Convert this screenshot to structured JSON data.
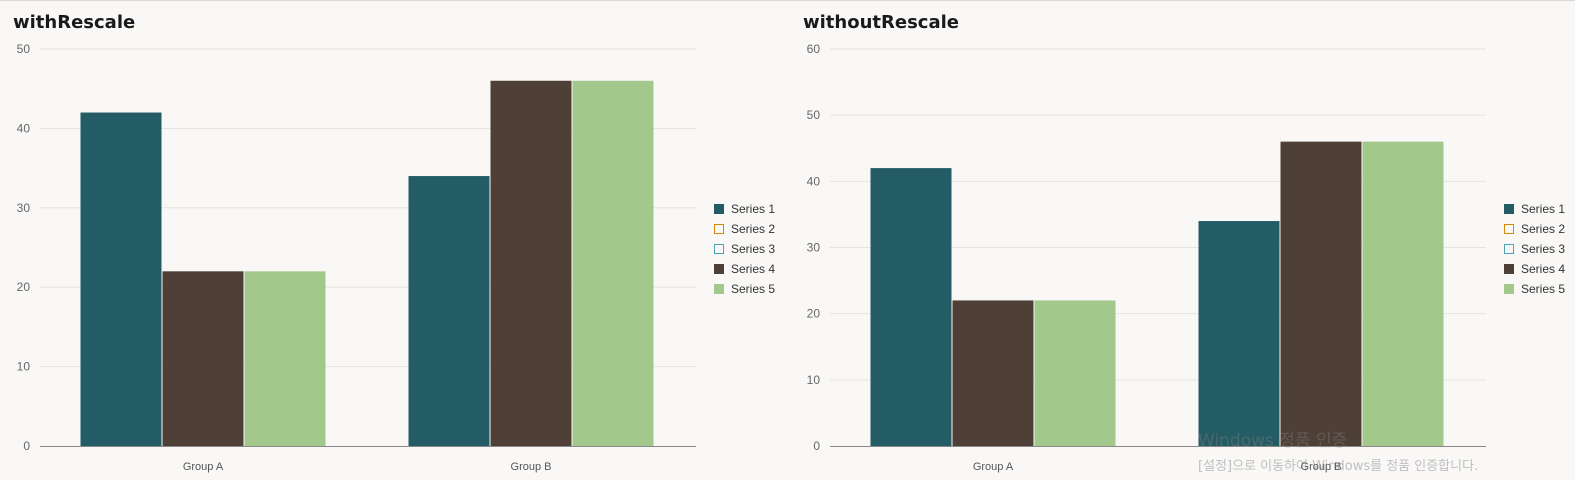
{
  "chart_data": [
    {
      "type": "bar",
      "title": "withRescale",
      "categories": [
        "Group A",
        "Group B"
      ],
      "series": [
        {
          "name": "Series 1",
          "color": "#245c66",
          "values": [
            42,
            34
          ]
        },
        {
          "name": "Series 2",
          "color": "#d8870b",
          "values": [
            null,
            null
          ]
        },
        {
          "name": "Series 3",
          "color": "#4aa5b4",
          "values": [
            null,
            null
          ]
        },
        {
          "name": "Series 4",
          "color": "#4f4037",
          "values": [
            22,
            46
          ]
        },
        {
          "name": "Series 5",
          "color": "#a2c98b",
          "values": [
            22,
            46
          ]
        }
      ],
      "ylim": [
        0,
        50
      ],
      "yticks": [
        "0",
        "10",
        "20",
        "30",
        "40",
        "50"
      ],
      "grid": true,
      "legend_position": "right"
    },
    {
      "type": "bar",
      "title": "withoutRescale",
      "categories": [
        "Group A",
        "Group B"
      ],
      "series": [
        {
          "name": "Series 1",
          "color": "#245c66",
          "values": [
            42,
            34
          ]
        },
        {
          "name": "Series 2",
          "color": "#d8870b",
          "values": [
            null,
            null
          ]
        },
        {
          "name": "Series 3",
          "color": "#4aa5b4",
          "values": [
            null,
            null
          ]
        },
        {
          "name": "Series 4",
          "color": "#4f4037",
          "values": [
            22,
            46
          ]
        },
        {
          "name": "Series 5",
          "color": "#a2c98b",
          "values": [
            22,
            46
          ]
        }
      ],
      "ylim": [
        0,
        60
      ],
      "yticks": [
        "0",
        "10",
        "20",
        "30",
        "40",
        "50",
        "60"
      ],
      "grid": true,
      "legend_position": "right"
    }
  ],
  "watermark": {
    "line1": "Windows 정품 인증",
    "line2": "[설정]으로 이동하여 Windows를 정품 인증합니다."
  }
}
